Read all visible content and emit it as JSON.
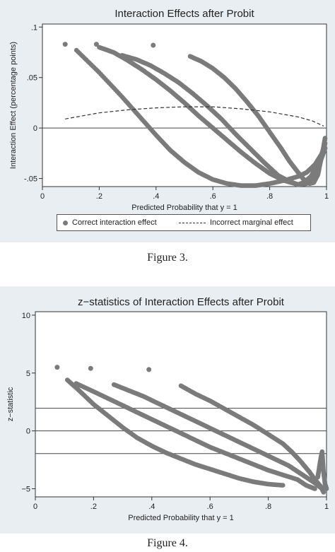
{
  "chart_data": [
    {
      "type": "scatter",
      "title": "Interaction Effects after Probit",
      "xlabel": "Predicted Probability that y = 1",
      "ylabel": "Interaction Effect (percentage points)",
      "xlim": [
        0,
        1
      ],
      "ylim": [
        -0.058,
        0.103
      ],
      "xticks": [
        0,
        0.2,
        0.4,
        0.6,
        0.8,
        1
      ],
      "xtick_labels": [
        "0",
        ".2",
        ".4",
        ".6",
        ".8",
        "1"
      ],
      "yticks": [
        -0.05,
        0,
        0.05,
        0.1
      ],
      "ytick_labels": [
        "-.05",
        "0",
        ".05",
        ".1"
      ],
      "hlines": [
        0
      ],
      "grid": false,
      "legend_position": "bottom",
      "colors": {
        "points": "#7b7b7b",
        "line": "#333333"
      },
      "series": [
        {
          "name": "Correct interaction effect",
          "kind": "scatter",
          "curves": [
            {
              "x": [
                0.12,
                0.2,
                0.28,
                0.34,
                0.4,
                0.45,
                0.5,
                0.55,
                0.6,
                0.65,
                0.7,
                0.75,
                0.8,
                0.85,
                0.9,
                0.93,
                0.96,
                0.98,
                0.995
              ],
              "y": [
                0.077,
                0.055,
                0.031,
                0.012,
                -0.007,
                -0.022,
                -0.034,
                -0.044,
                -0.051,
                -0.055,
                -0.057,
                -0.057,
                -0.055,
                -0.052,
                -0.048,
                -0.044,
                -0.036,
                -0.027,
                -0.02
              ]
            },
            {
              "x": [
                0.2,
                0.25,
                0.3,
                0.35,
                0.4,
                0.45,
                0.5,
                0.55,
                0.6,
                0.65,
                0.7,
                0.75,
                0.8,
                0.85,
                0.9,
                0.93,
                0.95,
                0.97,
                0.985,
                0.995
              ],
              "y": [
                0.08,
                0.075,
                0.067,
                0.058,
                0.048,
                0.037,
                0.025,
                0.012,
                0.0,
                -0.012,
                -0.024,
                -0.035,
                -0.045,
                -0.052,
                -0.056,
                -0.055,
                -0.05,
                -0.04,
                -0.028,
                -0.02
              ]
            },
            {
              "x": [
                0.28,
                0.33,
                0.38,
                0.43,
                0.48,
                0.53,
                0.58,
                0.63,
                0.68,
                0.73,
                0.78,
                0.83,
                0.87,
                0.9,
                0.92,
                0.945,
                0.965,
                0.98,
                0.99,
                0.995
              ],
              "y": [
                0.072,
                0.068,
                0.062,
                0.054,
                0.045,
                0.034,
                0.022,
                0.009,
                -0.006,
                -0.02,
                -0.034,
                -0.047,
                -0.053,
                -0.056,
                -0.054,
                -0.048,
                -0.038,
                -0.028,
                -0.02,
                -0.015
              ]
            },
            {
              "x": [
                0.52,
                0.56,
                0.6,
                0.64,
                0.68,
                0.72,
                0.76,
                0.8,
                0.84,
                0.87,
                0.9,
                0.92,
                0.94,
                0.955,
                0.97,
                0.98,
                0.99,
                0.995
              ],
              "y": [
                0.071,
                0.066,
                0.059,
                0.05,
                0.039,
                0.026,
                0.012,
                -0.004,
                -0.02,
                -0.033,
                -0.044,
                -0.051,
                -0.055,
                -0.054,
                -0.046,
                -0.032,
                -0.018,
                -0.01
              ]
            }
          ],
          "isolated": [
            {
              "x": 0.08,
              "y": 0.083
            },
            {
              "x": 0.19,
              "y": 0.083
            },
            {
              "x": 0.39,
              "y": 0.082
            }
          ]
        },
        {
          "name": "Incorrect marginal effect",
          "kind": "dashed-line",
          "x": [
            0.08,
            0.2,
            0.3,
            0.4,
            0.5,
            0.6,
            0.7,
            0.8,
            0.9,
            0.95,
            0.99
          ],
          "y": [
            0.009,
            0.015,
            0.018,
            0.02,
            0.021,
            0.021,
            0.019,
            0.016,
            0.011,
            0.007,
            0.002
          ]
        }
      ],
      "caption": "Figure 3."
    },
    {
      "type": "scatter",
      "title": "z−statistics of Interaction Effects after Probit",
      "xlabel": "Predicted Probability that y = 1",
      "ylabel": "z−statistic",
      "xlim": [
        0,
        1
      ],
      "ylim": [
        -5.7,
        10.3
      ],
      "xticks": [
        0,
        0.2,
        0.4,
        0.6,
        0.8,
        1
      ],
      "xtick_labels": [
        "0",
        ".2",
        ".4",
        ".6",
        ".8",
        "1"
      ],
      "yticks": [
        -5,
        0,
        5,
        10
      ],
      "ytick_labels": [
        "−5",
        "0",
        "5",
        "10"
      ],
      "hlines": [
        1.96,
        0,
        -1.96
      ],
      "grid": false,
      "colors": {
        "points": "#7b7b7b",
        "line": "#444444"
      },
      "series": [
        {
          "kind": "scatter",
          "curves": [
            {
              "x": [
                0.11,
                0.15,
                0.2,
                0.25,
                0.3,
                0.35,
                0.4,
                0.45,
                0.5,
                0.55,
                0.6,
                0.65,
                0.7,
                0.75,
                0.8,
                0.85
              ],
              "y": [
                4.4,
                3.5,
                2.3,
                1.3,
                0.3,
                -0.6,
                -1.3,
                -1.9,
                -2.4,
                -2.9,
                -3.3,
                -3.7,
                -4.1,
                -4.4,
                -4.6,
                -4.7
              ]
            },
            {
              "x": [
                0.14,
                0.2,
                0.25,
                0.3,
                0.35,
                0.4,
                0.45,
                0.5,
                0.55,
                0.6,
                0.65,
                0.7,
                0.75,
                0.8,
                0.85,
                0.9,
                0.93,
                0.96
              ],
              "y": [
                4.1,
                3.4,
                2.8,
                2.2,
                1.6,
                1.0,
                0.4,
                -0.2,
                -0.8,
                -1.4,
                -1.9,
                -2.4,
                -2.9,
                -3.4,
                -3.8,
                -4.2,
                -4.7,
                -5.0
              ]
            },
            {
              "x": [
                0.27,
                0.32,
                0.37,
                0.42,
                0.47,
                0.52,
                0.57,
                0.62,
                0.67,
                0.72,
                0.77,
                0.82,
                0.87,
                0.9,
                0.93,
                0.96,
                0.98
              ],
              "y": [
                4.0,
                3.5,
                3.0,
                2.4,
                1.8,
                1.2,
                0.6,
                0.0,
                -0.6,
                -1.2,
                -1.8,
                -2.4,
                -3.0,
                -3.5,
                -4.0,
                -4.5,
                -4.9
              ]
            },
            {
              "x": [
                0.5,
                0.55,
                0.6,
                0.65,
                0.7,
                0.75,
                0.8,
                0.85,
                0.88,
                0.91,
                0.94,
                0.96,
                0.98,
                0.99
              ],
              "y": [
                3.9,
                3.2,
                2.6,
                1.9,
                1.2,
                0.5,
                -0.3,
                -1.1,
                -1.8,
                -2.6,
                -3.5,
                -4.2,
                -4.8,
                -5.3
              ]
            },
            {
              "x": [
                0.97,
                0.975,
                0.98,
                0.985,
                0.99,
                0.995,
                1.0
              ],
              "y": [
                -4.0,
                -3.2,
                -2.4,
                -1.8,
                -3.6,
                -4.6,
                -5.0
              ]
            }
          ],
          "isolated": [
            {
              "x": 0.075,
              "y": 5.5
            },
            {
              "x": 0.19,
              "y": 5.4
            },
            {
              "x": 0.39,
              "y": 5.3
            }
          ]
        }
      ],
      "caption": "Figure 4."
    }
  ]
}
